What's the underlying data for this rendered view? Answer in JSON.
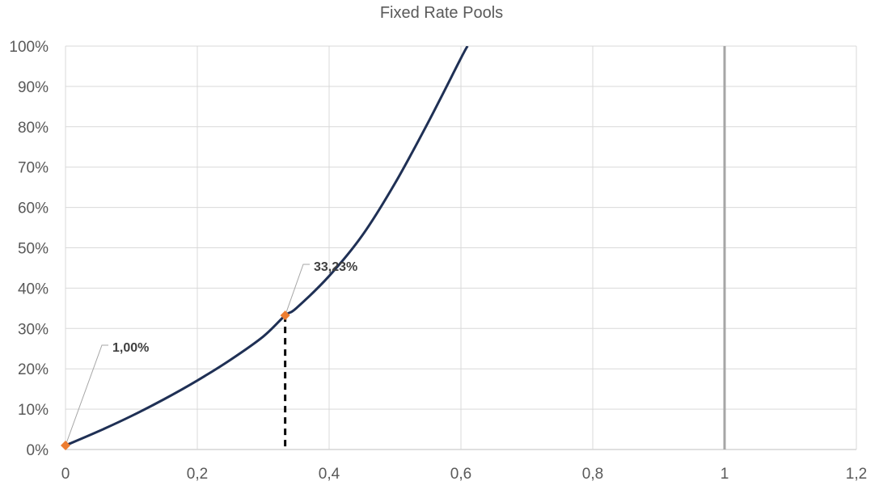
{
  "chart_data": {
    "type": "line",
    "title": "Fixed Rate Pools",
    "xlabel": "",
    "ylabel": "",
    "xlim": [
      0,
      1.2
    ],
    "ylim": [
      0,
      1.0
    ],
    "grid": true,
    "x_ticks": [
      "0",
      "0,2",
      "0,4",
      "0,6",
      "0,8",
      "1",
      "1,2"
    ],
    "y_ticks": [
      "0%",
      "10%",
      "20%",
      "30%",
      "40%",
      "50%",
      "60%",
      "70%",
      "80%",
      "90%",
      "100%"
    ],
    "series": [
      {
        "color": "#1f3055",
        "x": [
          0,
          0.05,
          0.1,
          0.15,
          0.2,
          0.25,
          0.3,
          0.3333,
          0.35,
          0.4,
          0.45,
          0.5,
          0.55,
          0.6,
          0.61
        ],
        "y": [
          0.01,
          0.045,
          0.083,
          0.125,
          0.171,
          0.222,
          0.28,
          0.3323,
          0.35,
          0.43,
          0.53,
          0.66,
          0.81,
          0.97,
          1.0
        ]
      }
    ],
    "highlight_points": [
      {
        "x": 0,
        "y": 0.01,
        "label": "1,00%",
        "color": "#ed7d31"
      },
      {
        "x": 0.3333,
        "y": 0.3323,
        "label": "33,23%",
        "color": "#ed7d31"
      }
    ],
    "drop_line_x": 0.3333,
    "vertical_line_x": 1,
    "vertical_line_color": "#a6a6a6"
  }
}
